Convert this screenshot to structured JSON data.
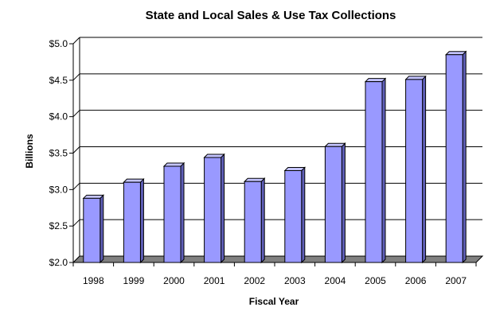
{
  "chart_data": {
    "type": "bar",
    "title": "State and Local Sales & Use Tax Collections",
    "xlabel": "Fiscal Year",
    "ylabel": "Billions",
    "categories": [
      "1998",
      "1999",
      "2000",
      "2001",
      "2002",
      "2003",
      "2004",
      "2005",
      "2006",
      "2007"
    ],
    "values": [
      2.88,
      3.1,
      3.32,
      3.44,
      3.11,
      3.26,
      3.59,
      4.48,
      4.51,
      4.85
    ],
    "ylim": [
      2.0,
      5.0
    ],
    "yticks": [
      2.0,
      2.5,
      3.0,
      3.5,
      4.0,
      4.5,
      5.0
    ],
    "ytick_labels": [
      "$2.0",
      "$2.5",
      "$3.0",
      "$3.5",
      "$4.0",
      "$4.5",
      "$5.0"
    ],
    "grid": true,
    "legend": "none",
    "colors": {
      "bar_front": "#9999ff",
      "bar_side": "#5f5fb8",
      "bar_top": "#c4c4ff",
      "floor": "#808080",
      "grid": "#000000"
    }
  }
}
